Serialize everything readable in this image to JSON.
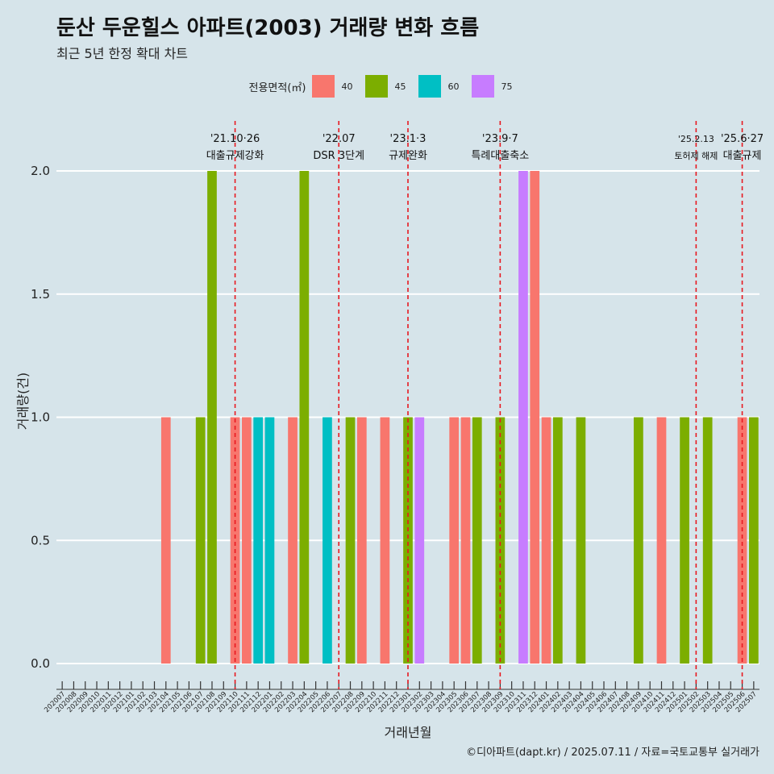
{
  "title": "둔산 두운힐스 아파트(2003) 거래량 변화 흐름",
  "subtitle": "최근 5년 한정 확대 차트",
  "caption": "©디아파트(dapt.kr) / 2025.07.11 / 자료=국토교통부 실거래가",
  "legend": {
    "title": "전용면적(㎡)",
    "items": [
      {
        "label": "40",
        "color": "#f8766d"
      },
      {
        "label": "45",
        "color": "#7cae00"
      },
      {
        "label": "60",
        "color": "#00bfc4"
      },
      {
        "label": "75",
        "color": "#c77cff"
      }
    ]
  },
  "chart_data": {
    "type": "bar",
    "xlabel": "거래년월",
    "ylabel": "거래량(건)",
    "ylim": [
      0,
      2.0
    ],
    "yticks": [
      "0.0",
      "0.5",
      "1.0",
      "1.5",
      "2.0"
    ],
    "grid": true,
    "legend_position": "top",
    "categories": [
      "202007",
      "202008",
      "202009",
      "202010",
      "202011",
      "202012",
      "202101",
      "202102",
      "202103",
      "202104",
      "202105",
      "202106",
      "202107",
      "202108",
      "202109",
      "202110",
      "202111",
      "202112",
      "202201",
      "202202",
      "202203",
      "202204",
      "202205",
      "202206",
      "202207",
      "202208",
      "202209",
      "202210",
      "202211",
      "202212",
      "202301",
      "202302",
      "202303",
      "202304",
      "202305",
      "202306",
      "202307",
      "202308",
      "202309",
      "202310",
      "202311",
      "202312",
      "202401",
      "202402",
      "202403",
      "202404",
      "202405",
      "202406",
      "202407",
      "202408",
      "202409",
      "202410",
      "202411",
      "202412",
      "202501",
      "202502",
      "202503",
      "202504",
      "202505",
      "202506",
      "202507"
    ],
    "bars": [
      {
        "month": "202104",
        "area": "40",
        "value": 1
      },
      {
        "month": "202107",
        "area": "45",
        "value": 1
      },
      {
        "month": "202108",
        "area": "45",
        "value": 2
      },
      {
        "month": "202110",
        "area": "40",
        "value": 1
      },
      {
        "month": "202111",
        "area": "40",
        "value": 1
      },
      {
        "month": "202112",
        "area": "60",
        "value": 1
      },
      {
        "month": "202201",
        "area": "60",
        "value": 1
      },
      {
        "month": "202203",
        "area": "40",
        "value": 1
      },
      {
        "month": "202204",
        "area": "45",
        "value": 2
      },
      {
        "month": "202206",
        "area": "60",
        "value": 1
      },
      {
        "month": "202208",
        "area": "45",
        "value": 1
      },
      {
        "month": "202209",
        "area": "40",
        "value": 1
      },
      {
        "month": "202211",
        "area": "40",
        "value": 1
      },
      {
        "month": "202301",
        "area": "45",
        "value": 1
      },
      {
        "month": "202302",
        "area": "75",
        "value": 1
      },
      {
        "month": "202305",
        "area": "40",
        "value": 1
      },
      {
        "month": "202306",
        "area": "40",
        "value": 1
      },
      {
        "month": "202307",
        "area": "45",
        "value": 1
      },
      {
        "month": "202309",
        "area": "45",
        "value": 1
      },
      {
        "month": "202311",
        "area": "75",
        "value": 2
      },
      {
        "month": "202312",
        "area": "40",
        "value": 2
      },
      {
        "month": "202401",
        "area": "40",
        "value": 1
      },
      {
        "month": "202402",
        "area": "45",
        "value": 1
      },
      {
        "month": "202404",
        "area": "45",
        "value": 1
      },
      {
        "month": "202409",
        "area": "45",
        "value": 1
      },
      {
        "month": "202411",
        "area": "40",
        "value": 1
      },
      {
        "month": "202501",
        "area": "45",
        "value": 1
      },
      {
        "month": "202503",
        "area": "45",
        "value": 1
      },
      {
        "month": "202506",
        "area": "40",
        "value": 1
      },
      {
        "month": "202507",
        "area": "45",
        "value": 1
      }
    ],
    "annotations": [
      {
        "month": "202110",
        "date": "'21.10·26",
        "label": "대출규제강화",
        "small": false
      },
      {
        "month": "202207",
        "date": "'22.07",
        "label": "DSR 3단계",
        "small": false
      },
      {
        "month": "202301",
        "date": "'23.1·3",
        "label": "규제완화",
        "small": false
      },
      {
        "month": "202309",
        "date": "'23.9·7",
        "label": "특례대출축소",
        "small": false
      },
      {
        "month": "202502",
        "date": "'25.2.13",
        "label": "토허제 해제",
        "small": true
      },
      {
        "month": "202506",
        "date": "'25.6·27",
        "label": "대출규제",
        "small": false
      }
    ]
  }
}
